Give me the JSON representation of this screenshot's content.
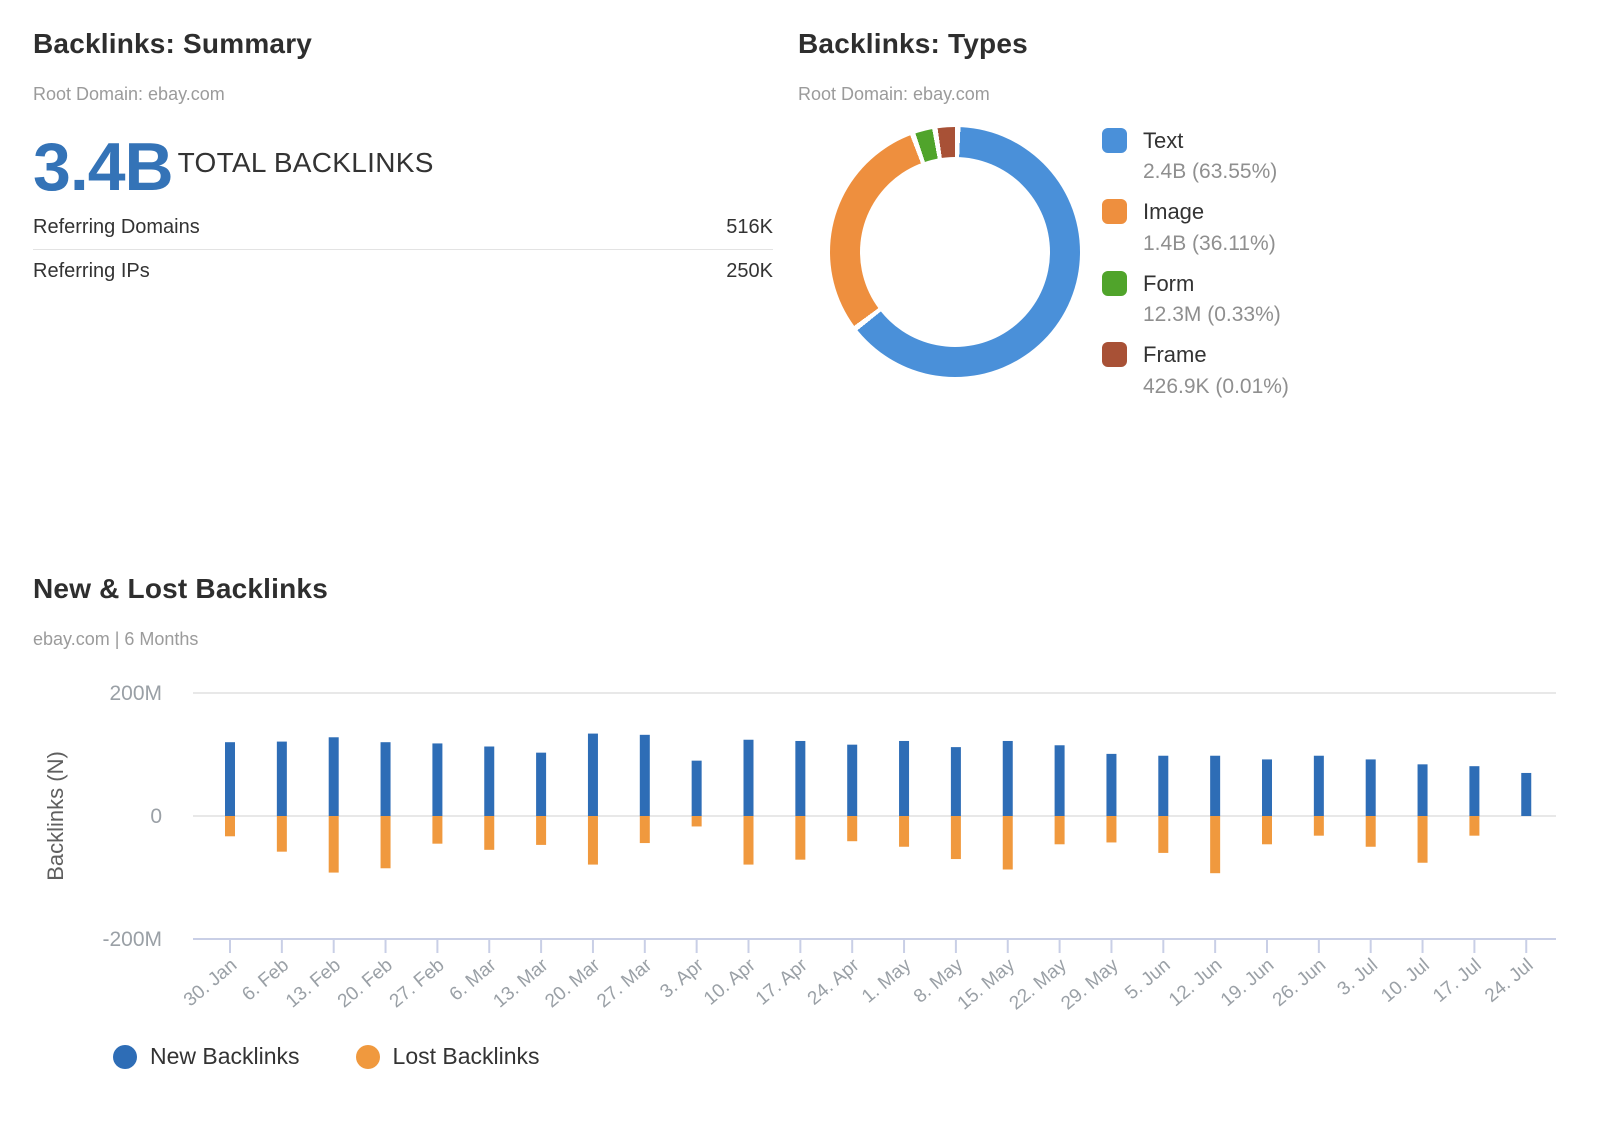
{
  "summary": {
    "title": "Backlinks: Summary",
    "subtitle": "Root Domain: ebay.com",
    "total_value": "3.4B",
    "total_label": "TOTAL BACKLINKS",
    "rows": [
      {
        "label": "Referring Domains",
        "value": "516K"
      },
      {
        "label": "Referring IPs",
        "value": "250K"
      }
    ]
  },
  "types": {
    "title": "Backlinks: Types",
    "subtitle": "Root Domain: ebay.com"
  },
  "newlost": {
    "title": "New & Lost Backlinks",
    "subtitle": "ebay.com | 6 Months"
  },
  "chart_data": [
    {
      "type": "pie",
      "donut": true,
      "title": "Backlinks: Types",
      "subtitle": "Root Domain: ebay.com",
      "legend_position": "right",
      "colors": [
        "#4a90d9",
        "#ee8f3e",
        "#50a42b",
        "#a85136"
      ],
      "items": [
        {
          "label": "Text",
          "value_text": "2.4B (63.55%)",
          "pct": 63.55
        },
        {
          "label": "Image",
          "value_text": "1.4B (36.11%)",
          "pct": 36.11
        },
        {
          "label": "Form",
          "value_text": "12.3M (0.33%)",
          "pct": 0.33
        },
        {
          "label": "Frame",
          "value_text": "426.9K (0.01%)",
          "pct": 0.01
        }
      ]
    },
    {
      "type": "bar",
      "title": "New & Lost Backlinks",
      "subtitle": "ebay.com | 6 Months",
      "ylabel": "Backlinks (N)",
      "ylim_m": [
        -200,
        200
      ],
      "yticks": [
        {
          "label": "200M",
          "value_m": 200
        },
        {
          "label": "0",
          "value_m": 0
        },
        {
          "label": "-200M",
          "value_m": -200
        }
      ],
      "grid": true,
      "legend_position": "bottom",
      "categories": [
        "30. Jan",
        "6. Feb",
        "13. Feb",
        "20. Feb",
        "27. Feb",
        "6. Mar",
        "13. Mar",
        "20. Mar",
        "27. Mar",
        "3. Apr",
        "10. Apr",
        "17. Apr",
        "24. Apr",
        "1. May",
        "8. May",
        "15. May",
        "22. May",
        "29. May",
        "5. Jun",
        "12. Jun",
        "19. Jun",
        "26. Jun",
        "3. Jul",
        "10. Jul",
        "17. Jul",
        "24. Jul"
      ],
      "series": [
        {
          "name": "New Backlinks",
          "color": "#2e6db6",
          "values_m": [
            120,
            121,
            128,
            120,
            118,
            113,
            103,
            134,
            132,
            90,
            124,
            122,
            116,
            122,
            112,
            122,
            115,
            101,
            98,
            98,
            92,
            98,
            92,
            84,
            81,
            70
          ]
        },
        {
          "name": "Lost Backlinks",
          "color": "#f0993e",
          "values_m": [
            -33,
            -58,
            -92,
            -85,
            -45,
            -55,
            -47,
            -79,
            -44,
            -17,
            -79,
            -71,
            -41,
            -50,
            -70,
            -87,
            -46,
            -43,
            -60,
            -93,
            -46,
            -32,
            -50,
            -76,
            -32,
            0
          ]
        }
      ]
    }
  ]
}
